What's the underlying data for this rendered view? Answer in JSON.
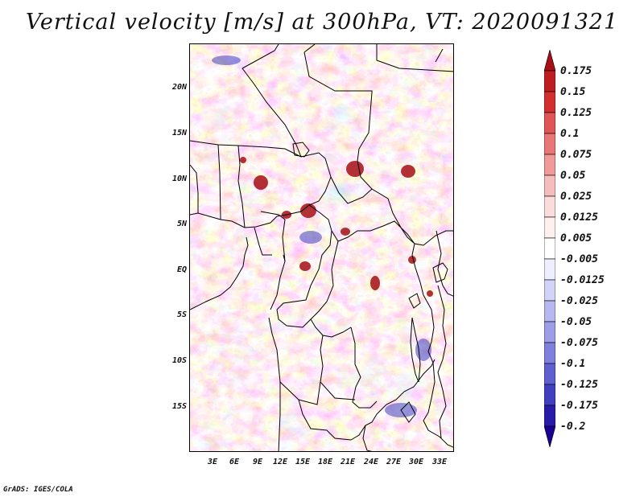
{
  "title": "Vertical velocity [m/s] at 300hPa, VT: 2020091321",
  "credit": "GrADS: IGES/COLA",
  "map": {
    "lat_labels": [
      "20N",
      "15N",
      "10N",
      "5N",
      "EQ",
      "5S",
      "10S",
      "15S"
    ],
    "lon_labels": [
      "3E",
      "6E",
      "9E",
      "12E",
      "15E",
      "18E",
      "21E",
      "24E",
      "27E",
      "30E",
      "33E"
    ]
  },
  "colorbar": {
    "labels": [
      "0.175",
      "0.15",
      "0.125",
      "0.1",
      "0.075",
      "0.05",
      "0.025",
      "0.0125",
      "0.005",
      "-0.005",
      "-0.0125",
      "-0.025",
      "-0.05",
      "-0.075",
      "-0.1",
      "-0.125",
      "-0.175",
      "-0.2"
    ],
    "colors": [
      "#a50f15",
      "#be1e22",
      "#d32f2f",
      "#e05555",
      "#e97777",
      "#f09a9a",
      "#f6bdbd",
      "#fadcdc",
      "#fff0f0",
      "#ffffff",
      "#eeeeff",
      "#d3d3f7",
      "#b8b8f0",
      "#9d9de8",
      "#7f7fdd",
      "#5f5fd0",
      "#3f3fc0",
      "#2a1aa8",
      "#1a0090"
    ]
  }
}
